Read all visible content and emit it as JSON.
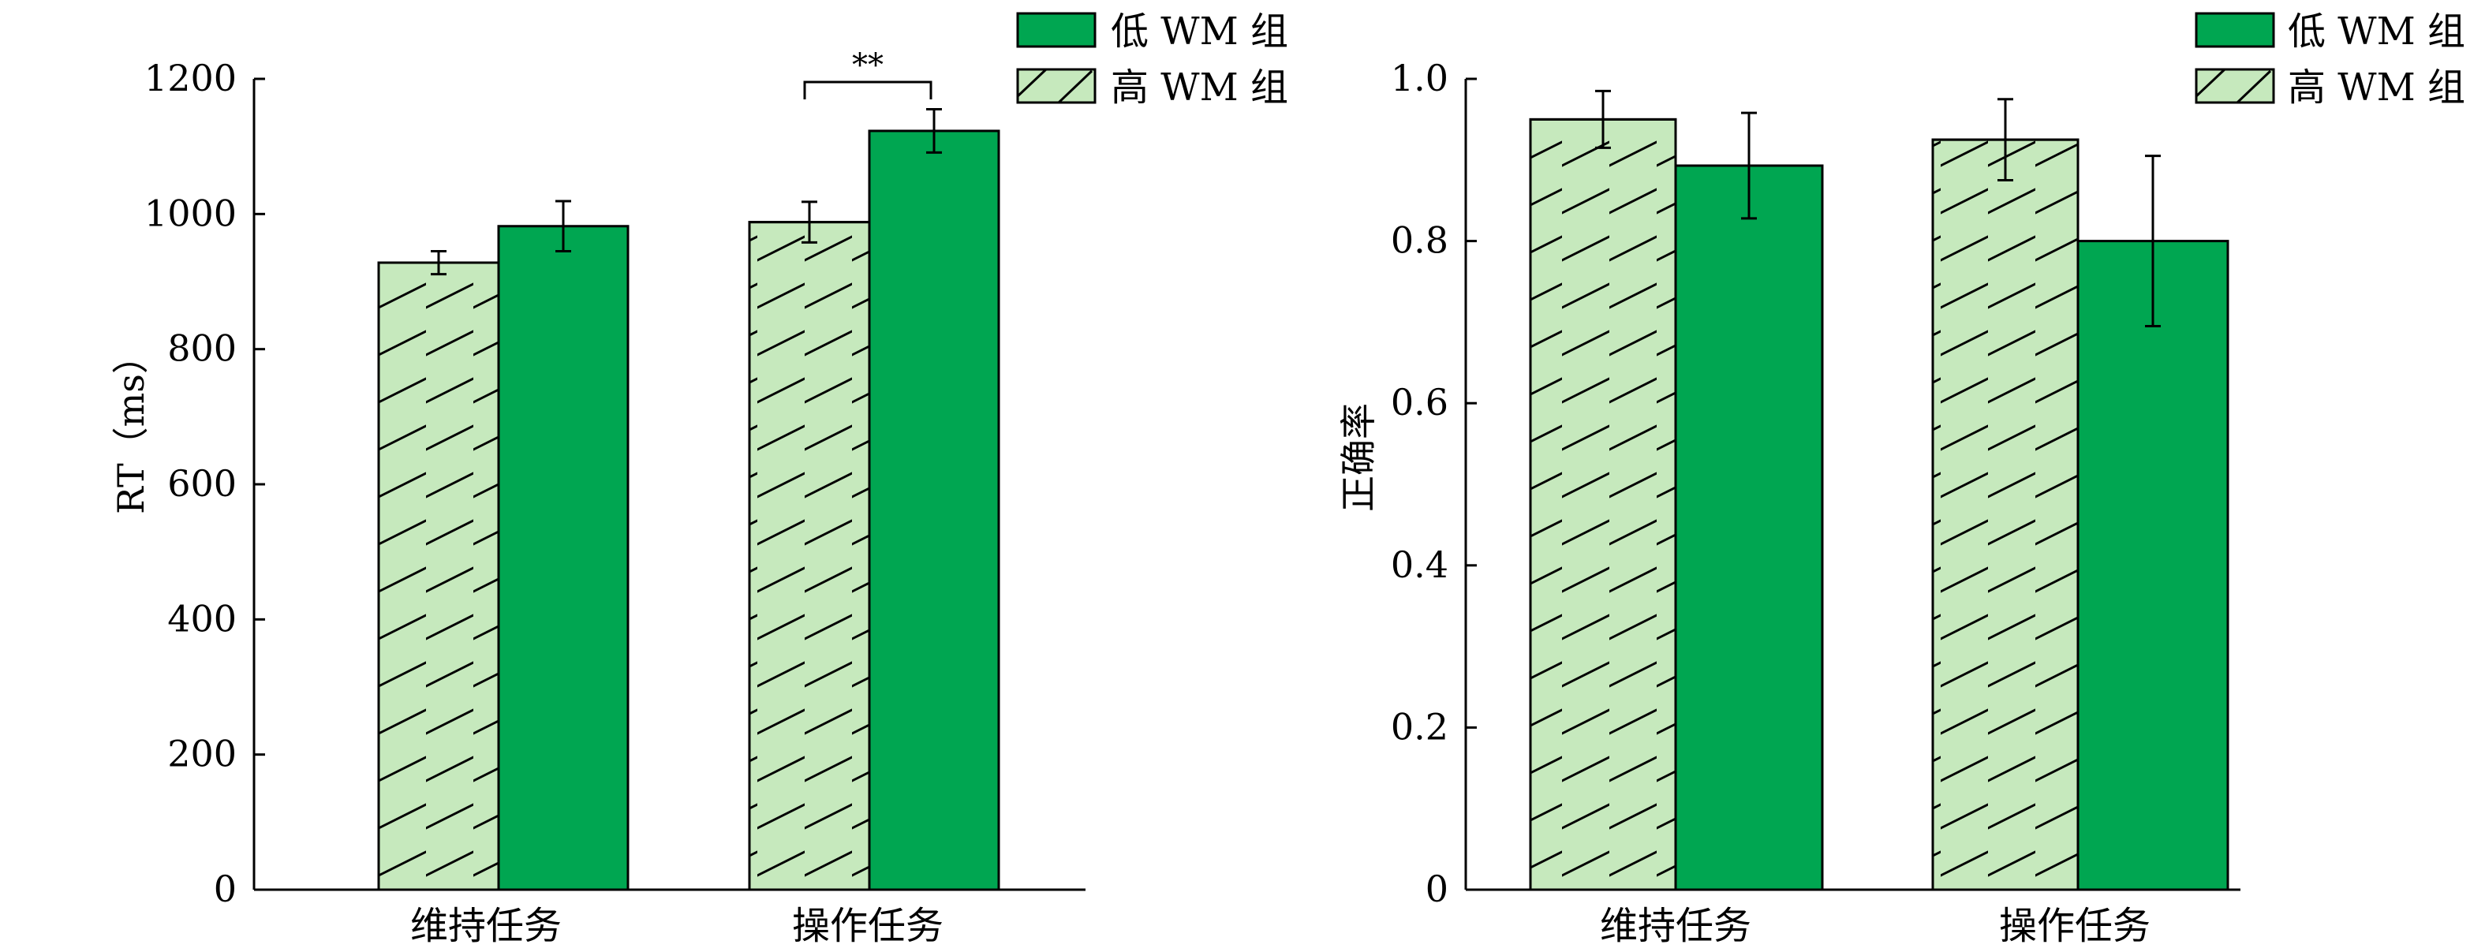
{
  "colors": {
    "low": "#00a651",
    "high": "#c6e9bd",
    "stroke": "#000000"
  },
  "legend": {
    "low": "低 WM 组",
    "high": "高 WM 组"
  },
  "chart_data": [
    {
      "type": "bar",
      "ylabel": "RT（ms）",
      "ylim": [
        0,
        1200
      ],
      "yticks": [
        "0",
        "200",
        "400",
        "600",
        "800",
        "1000",
        "1200"
      ],
      "categories": [
        "维持任务",
        "操作任务"
      ],
      "series": [
        {
          "name": "高 WM 组",
          "values": [
            928,
            988
          ],
          "errors": [
            17,
            30
          ]
        },
        {
          "name": "低 WM 组",
          "values": [
            982,
            1123
          ],
          "errors": [
            37,
            32
          ]
        }
      ],
      "significance": {
        "category": 1,
        "label": "**"
      },
      "legend_position": "top-right"
    },
    {
      "type": "bar",
      "ylabel": "正确率",
      "ylim": [
        0,
        1.0
      ],
      "yticks": [
        "0",
        "0.2",
        "0.4",
        "0.6",
        "0.8",
        "1.0"
      ],
      "categories": [
        "维持任务",
        "操作任务"
      ],
      "series": [
        {
          "name": "高 WM 组",
          "values": [
            0.95,
            0.925
          ],
          "errors": [
            0.035,
            0.05
          ]
        },
        {
          "name": "低 WM 组",
          "values": [
            0.893,
            0.8
          ],
          "errors": [
            0.065,
            0.105
          ]
        }
      ],
      "legend_position": "top-right"
    }
  ]
}
